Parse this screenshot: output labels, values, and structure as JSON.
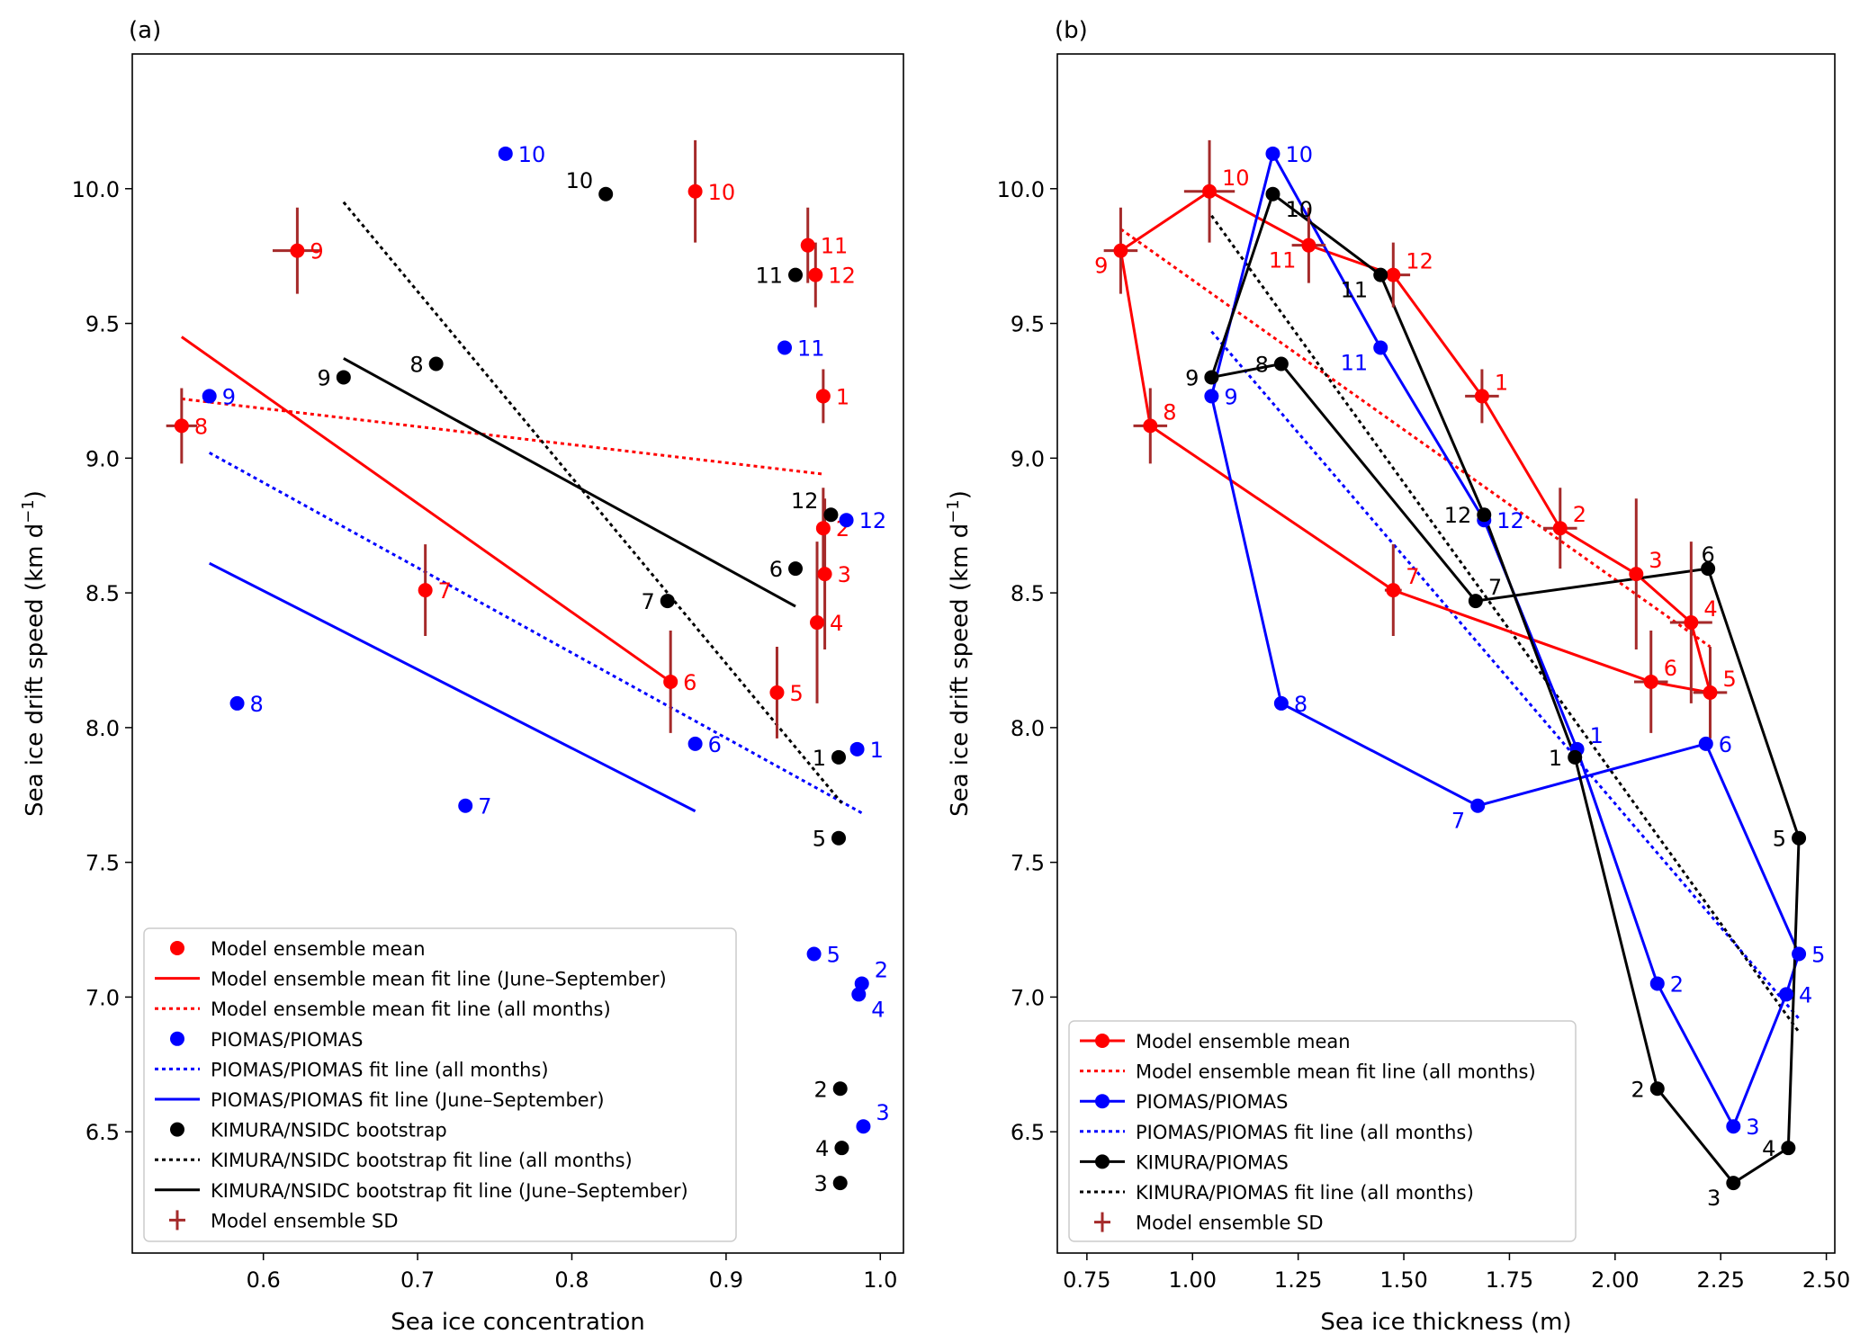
{
  "colors": {
    "model": "#ff0000",
    "sd": "#a52a2a",
    "piomas": "#0000ff",
    "kimura": "#000000"
  },
  "chart_data": [
    {
      "type": "scatter",
      "panel_label": "(a)",
      "xlabel": "Sea ice concentration",
      "ylabel": "Sea ice drift speed (km d",
      "ylabel_sup": "−1",
      "ylabel_end": ")",
      "xlim": [
        0.515,
        1.015
      ],
      "ylim": [
        6.05,
        10.5
      ],
      "xticks": [
        0.6,
        0.7,
        0.8,
        0.9,
        1.0
      ],
      "xtick_labels": [
        "0.6",
        "0.7",
        "0.8",
        "0.9",
        "1.0"
      ],
      "yticks": [
        6.5,
        7.0,
        7.5,
        8.0,
        8.5,
        9.0,
        9.5,
        10.0
      ],
      "ytick_labels": [
        "6.5",
        "7.0",
        "7.5",
        "8.0",
        "8.5",
        "9.0",
        "9.5",
        "10.0"
      ],
      "series": [
        {
          "name": "Model ensemble mean",
          "role": "model",
          "color": "#ff0000",
          "labels": [
            "1",
            "2",
            "3",
            "4",
            "5",
            "6",
            "7",
            "8",
            "9",
            "10",
            "11",
            "12"
          ],
          "x": [
            0.963,
            0.963,
            0.964,
            0.959,
            0.933,
            0.864,
            0.705,
            0.547,
            0.622,
            0.88,
            0.953,
            0.958
          ],
          "y": [
            9.23,
            8.74,
            8.57,
            8.39,
            8.13,
            8.17,
            8.51,
            9.12,
            9.77,
            9.99,
            9.79,
            9.68
          ],
          "xerr": [
            0,
            0,
            0,
            0,
            0,
            0,
            0,
            0.01,
            0.016,
            0,
            0,
            0
          ],
          "yerr": [
            0.1,
            0.15,
            0.28,
            0.3,
            0.17,
            0.19,
            0.17,
            0.14,
            0.16,
            0.19,
            0.14,
            0.12
          ],
          "label_offsets": [
            [
              1,
              0
            ],
            [
              1,
              0
            ],
            [
              1,
              0
            ],
            [
              1,
              0
            ],
            [
              1,
              0
            ],
            [
              1,
              0
            ],
            [
              1,
              0
            ],
            [
              1,
              0
            ],
            [
              1,
              0
            ],
            [
              1,
              0
            ],
            [
              1,
              0
            ],
            [
              1,
              0
            ]
          ]
        },
        {
          "name": "PIOMAS/PIOMAS",
          "role": "piomas",
          "color": "#0000ff",
          "labels": [
            "1",
            "2",
            "3",
            "4",
            "5",
            "6",
            "7",
            "8",
            "9",
            "10",
            "11",
            "12"
          ],
          "x": [
            0.985,
            0.988,
            0.989,
            0.986,
            0.957,
            0.88,
            0.731,
            0.583,
            0.565,
            0.757,
            0.938,
            0.978
          ],
          "y": [
            7.92,
            7.05,
            6.52,
            7.01,
            7.16,
            7.94,
            7.71,
            8.09,
            9.23,
            10.13,
            9.41,
            8.77
          ],
          "label_offsets": [
            [
              1,
              0
            ],
            [
              1,
              -1
            ],
            [
              1,
              -1
            ],
            [
              1,
              1
            ],
            [
              1,
              0
            ],
            [
              1,
              0
            ],
            [
              1,
              0
            ],
            [
              1,
              0
            ],
            [
              1,
              0
            ],
            [
              1,
              0
            ],
            [
              1,
              0
            ],
            [
              1,
              0
            ]
          ]
        },
        {
          "name": "KIMURA/NSIDC bootstrap",
          "role": "kimura",
          "color": "#000000",
          "labels": [
            "1",
            "2",
            "3",
            "4",
            "5",
            "6",
            "7",
            "8",
            "9",
            "10",
            "11",
            "12"
          ],
          "x": [
            0.973,
            0.974,
            0.974,
            0.975,
            0.973,
            0.945,
            0.862,
            0.712,
            0.652,
            0.822,
            0.945,
            0.968
          ],
          "y": [
            7.89,
            6.66,
            6.31,
            6.44,
            7.59,
            8.59,
            8.47,
            9.35,
            9.3,
            9.98,
            9.68,
            8.79
          ],
          "label_offsets": [
            [
              -1,
              0
            ],
            [
              -1,
              0
            ],
            [
              -1,
              0
            ],
            [
              -1,
              0
            ],
            [
              -1,
              0
            ],
            [
              -1,
              0
            ],
            [
              -1,
              0
            ],
            [
              -1,
              0
            ],
            [
              -1,
              0
            ],
            [
              -1,
              -1
            ],
            [
              -1,
              0
            ],
            [
              -1,
              -1
            ]
          ]
        }
      ],
      "fit_lines": [
        {
          "name": "Model ensemble mean fit line (June–September)",
          "color": "#ff0000",
          "dash": "solid",
          "x": [
            0.547,
            0.864
          ],
          "y": [
            9.45,
            8.17
          ]
        },
        {
          "name": "Model ensemble mean fit line (all months)",
          "color": "#ff0000",
          "dash": "dotted",
          "x": [
            0.547,
            0.964
          ],
          "y": [
            9.22,
            8.94
          ]
        },
        {
          "name": "PIOMAS/PIOMAS fit line (all months)",
          "color": "#0000ff",
          "dash": "dotted",
          "x": [
            0.565,
            0.989
          ],
          "y": [
            9.02,
            7.68
          ]
        },
        {
          "name": "PIOMAS/PIOMAS fit line (June–September)",
          "color": "#0000ff",
          "dash": "solid",
          "x": [
            0.565,
            0.88
          ],
          "y": [
            8.61,
            7.69
          ]
        },
        {
          "name": "KIMURA/NSIDC bootstrap fit line (all months)",
          "color": "#000000",
          "dash": "dotted",
          "x": [
            0.652,
            0.975
          ],
          "y": [
            9.95,
            7.72
          ]
        },
        {
          "name": "KIMURA/NSIDC bootstrap fit line (June–September)",
          "color": "#000000",
          "dash": "solid",
          "x": [
            0.652,
            0.945
          ],
          "y": [
            9.37,
            8.45
          ]
        }
      ],
      "legend": {
        "position": "lower-left",
        "entries": [
          {
            "label": "Model ensemble mean",
            "color": "#ff0000",
            "kind": "dot"
          },
          {
            "label": "Model ensemble mean fit line (June–September)",
            "color": "#ff0000",
            "kind": "solid"
          },
          {
            "label": "Model ensemble mean fit line (all months)",
            "color": "#ff0000",
            "kind": "dotted"
          },
          {
            "label": "PIOMAS/PIOMAS",
            "color": "#0000ff",
            "kind": "dot"
          },
          {
            "label": "PIOMAS/PIOMAS fit line (all months)",
            "color": "#0000ff",
            "kind": "dotted"
          },
          {
            "label": "PIOMAS/PIOMAS fit line (June–September)",
            "color": "#0000ff",
            "kind": "solid"
          },
          {
            "label": "KIMURA/NSIDC bootstrap",
            "color": "#000000",
            "kind": "dot"
          },
          {
            "label": "KIMURA/NSIDC bootstrap fit line (all months)",
            "color": "#000000",
            "kind": "dotted"
          },
          {
            "label": "KIMURA/NSIDC bootstrap fit line (June–September)",
            "color": "#000000",
            "kind": "solid"
          },
          {
            "label": "Model ensemble SD",
            "color": "#a52a2a",
            "kind": "cross"
          }
        ]
      }
    },
    {
      "type": "line",
      "panel_label": "(b)",
      "xlabel": "Sea ice thickness (m)",
      "ylabel": "Sea ice drift speed (km d",
      "ylabel_sup": "−1",
      "ylabel_end": ")",
      "xlim": [
        0.68,
        2.52
      ],
      "ylim": [
        6.05,
        10.5
      ],
      "xticks": [
        0.75,
        1.0,
        1.25,
        1.5,
        1.75,
        2.0,
        2.25,
        2.5
      ],
      "xtick_labels": [
        "0.75",
        "1.00",
        "1.25",
        "1.50",
        "1.75",
        "2.00",
        "2.25",
        "2.50"
      ],
      "yticks": [
        6.5,
        7.0,
        7.5,
        8.0,
        8.5,
        9.0,
        9.5,
        10.0
      ],
      "ytick_labels": [
        "6.5",
        "7.0",
        "7.5",
        "8.0",
        "8.5",
        "9.0",
        "9.5",
        "10.0"
      ],
      "series": [
        {
          "name": "Model ensemble mean",
          "role": "model",
          "color": "#ff0000",
          "labels": [
            "1",
            "2",
            "3",
            "4",
            "5",
            "6",
            "7",
            "8",
            "9",
            "10",
            "11",
            "12"
          ],
          "x": [
            1.685,
            1.87,
            2.05,
            2.18,
            2.225,
            2.085,
            1.475,
            0.9,
            0.83,
            1.04,
            1.275,
            1.475
          ],
          "y": [
            9.23,
            8.74,
            8.57,
            8.39,
            8.13,
            8.17,
            8.51,
            9.12,
            9.77,
            9.99,
            9.79,
            9.68
          ],
          "xerr": [
            0.04,
            0.04,
            0,
            0.05,
            0.04,
            0.04,
            0.02,
            0.04,
            0.04,
            0.06,
            0.04,
            0.04
          ],
          "yerr": [
            0.1,
            0.15,
            0.28,
            0.3,
            0.17,
            0.19,
            0.17,
            0.14,
            0.16,
            0.19,
            0.14,
            0.12
          ],
          "label_offsets": [
            [
              1,
              -1
            ],
            [
              1,
              -1
            ],
            [
              1,
              -1
            ],
            [
              1,
              -1
            ],
            [
              1,
              -1
            ],
            [
              1,
              -1
            ],
            [
              1,
              -1
            ],
            [
              1,
              -1
            ],
            [
              -1,
              1
            ],
            [
              1,
              -1
            ],
            [
              -1,
              1
            ],
            [
              1,
              -1
            ]
          ]
        },
        {
          "name": "PIOMAS/PIOMAS",
          "role": "piomas",
          "color": "#0000ff",
          "labels": [
            "1",
            "2",
            "3",
            "4",
            "5",
            "6",
            "7",
            "8",
            "9",
            "10",
            "11",
            "12"
          ],
          "x": [
            1.91,
            2.1,
            2.28,
            2.405,
            2.435,
            2.215,
            1.675,
            1.21,
            1.045,
            1.19,
            1.445,
            1.69
          ],
          "y": [
            7.92,
            7.05,
            6.52,
            7.01,
            7.16,
            7.94,
            7.71,
            8.09,
            9.23,
            10.13,
            9.41,
            8.77
          ],
          "label_offsets": [
            [
              1,
              -1
            ],
            [
              1,
              0
            ],
            [
              1,
              0
            ],
            [
              1,
              0
            ],
            [
              1,
              0
            ],
            [
              1,
              0
            ],
            [
              -1,
              1
            ],
            [
              1,
              0
            ],
            [
              1,
              0
            ],
            [
              1,
              0
            ],
            [
              -1,
              1
            ],
            [
              1,
              0
            ]
          ]
        },
        {
          "name": "KIMURA/PIOMAS",
          "role": "kimura",
          "color": "#000000",
          "labels": [
            "1",
            "2",
            "3",
            "4",
            "5",
            "6",
            "7",
            "8",
            "9",
            "10",
            "11",
            "12"
          ],
          "x": [
            1.905,
            2.1,
            2.28,
            2.41,
            2.435,
            2.22,
            1.67,
            1.21,
            1.045,
            1.19,
            1.445,
            1.69
          ],
          "y": [
            7.89,
            6.66,
            6.31,
            6.44,
            7.59,
            8.59,
            8.47,
            9.35,
            9.3,
            9.98,
            9.68,
            8.79
          ],
          "label_offsets": [
            [
              -1,
              0
            ],
            [
              -1,
              0
            ],
            [
              -1,
              1
            ],
            [
              -1,
              0
            ],
            [
              -1,
              0
            ],
            [
              0,
              -1
            ],
            [
              1,
              -1
            ],
            [
              -1,
              0
            ],
            [
              -1,
              0
            ],
            [
              1,
              1
            ],
            [
              -1,
              1
            ],
            [
              -1,
              0
            ]
          ]
        }
      ],
      "fit_lines": [
        {
          "name": "Model ensemble mean fit line (all months)",
          "color": "#ff0000",
          "dash": "dotted",
          "x": [
            0.83,
            2.225
          ],
          "y": [
            9.85,
            8.3
          ]
        },
        {
          "name": "PIOMAS/PIOMAS fit line (all months)",
          "color": "#0000ff",
          "dash": "dotted",
          "x": [
            1.045,
            2.435
          ],
          "y": [
            9.47,
            6.92
          ]
        },
        {
          "name": "KIMURA/PIOMAS fit line (all months)",
          "color": "#000000",
          "dash": "dotted",
          "x": [
            1.045,
            2.435
          ],
          "y": [
            9.9,
            6.87
          ]
        }
      ],
      "legend": {
        "position": "lower-left",
        "entries": [
          {
            "label": "Model ensemble mean",
            "color": "#ff0000",
            "kind": "linedot"
          },
          {
            "label": "Model ensemble mean fit line (all months)",
            "color": "#ff0000",
            "kind": "dotted"
          },
          {
            "label": "PIOMAS/PIOMAS",
            "color": "#0000ff",
            "kind": "linedot"
          },
          {
            "label": "PIOMAS/PIOMAS fit line (all months)",
            "color": "#0000ff",
            "kind": "dotted"
          },
          {
            "label": "KIMURA/PIOMAS",
            "color": "#000000",
            "kind": "linedot"
          },
          {
            "label": "KIMURA/PIOMAS fit line (all months)",
            "color": "#000000",
            "kind": "dotted"
          },
          {
            "label": "Model ensemble SD",
            "color": "#a52a2a",
            "kind": "cross"
          }
        ]
      }
    }
  ]
}
